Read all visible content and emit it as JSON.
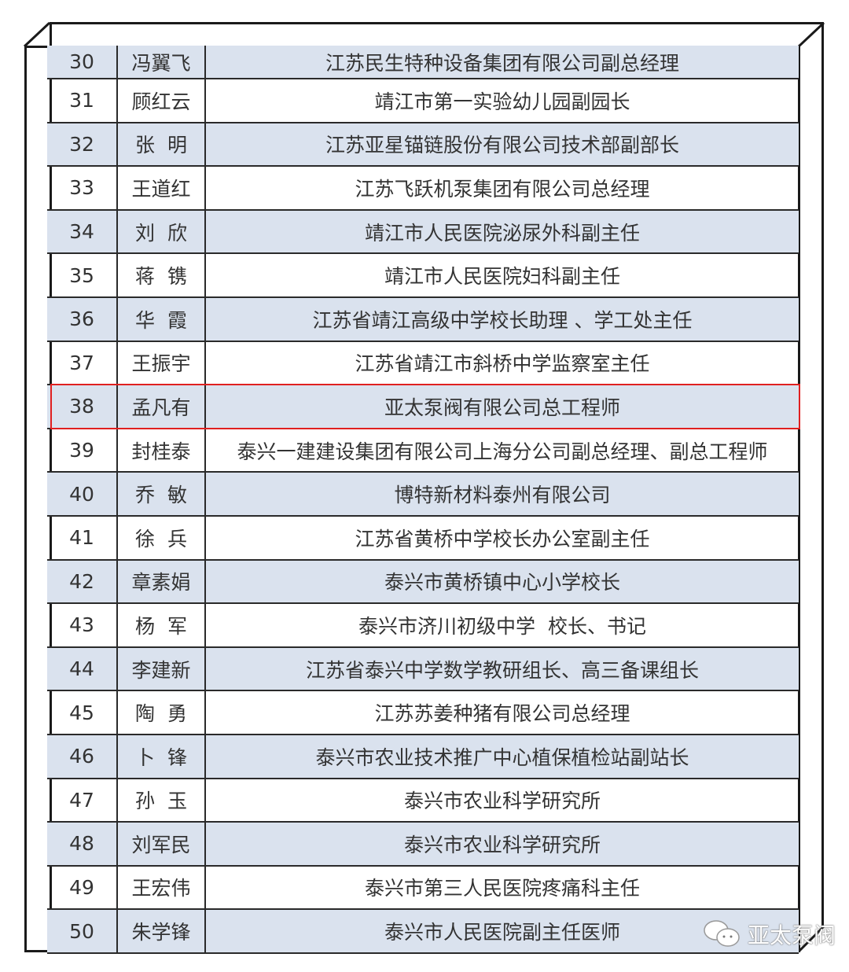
{
  "rows": [
    {
      "no": "30",
      "name": "冯翼飞",
      "unit": "江苏民生特种设备集团有限公司副总经理"
    },
    {
      "no": "31",
      "name": "顾红云",
      "unit": "靖江市第一实验幼儿园副园长"
    },
    {
      "no": "32",
      "name": "张  明",
      "unit": "江苏亚星锚链股份有限公司技术部副部长"
    },
    {
      "no": "33",
      "name": "王道红",
      "unit": "江苏飞跃机泵集团有限公司总经理"
    },
    {
      "no": "34",
      "name": "刘  欣",
      "unit": "靖江市人民医院泌尿外科副主任"
    },
    {
      "no": "35",
      "name": "蒋  镌",
      "unit": "靖江市人民医院妇科副主任"
    },
    {
      "no": "36",
      "name": "华  霞",
      "unit": "江苏省靖江高级中学校长助理 、学工处主任"
    },
    {
      "no": "37",
      "name": "王振宇",
      "unit": "江苏省靖江市斜桥中学监察室主任"
    },
    {
      "no": "38",
      "name": "孟凡有",
      "unit": "亚太泵阀有限公司总工程师"
    },
    {
      "no": "39",
      "name": "封桂泰",
      "unit": "泰兴一建建设集团有限公司上海分公司副总经理、副总工程师"
    },
    {
      "no": "40",
      "name": "乔  敏",
      "unit": "博特新材料泰州有限公司"
    },
    {
      "no": "41",
      "name": "徐  兵",
      "unit": "江苏省黄桥中学校长办公室副主任"
    },
    {
      "no": "42",
      "name": "章素娟",
      "unit": "泰兴市黄桥镇中心小学校长"
    },
    {
      "no": "43",
      "name": "杨  军",
      "unit": "泰兴市济川初级中学  校长、书记"
    },
    {
      "no": "44",
      "name": "李建新",
      "unit": "江苏省泰兴中学数学教研组长、高三备课组长"
    },
    {
      "no": "45",
      "name": "陶  勇",
      "unit": "江苏苏姜种猪有限公司总经理"
    },
    {
      "no": "46",
      "name": "卜  锋",
      "unit": "泰兴市农业技术推广中心植保植检站副站长"
    },
    {
      "no": "47",
      "name": "孙  玉",
      "unit": "泰兴市农业科学研究所"
    },
    {
      "no": "48",
      "name": "刘军民",
      "unit": "泰兴市农业科学研究所"
    },
    {
      "no": "49",
      "name": "王宏伟",
      "unit": "泰兴市第三人民医院疼痛科主任"
    },
    {
      "no": "50",
      "name": "朱学锋",
      "unit": "泰兴市人民医院副主任医师"
    }
  ],
  "highlighted_no": "38",
  "watermark": {
    "text": "亚太泵阀",
    "icon": "wechat-icon"
  },
  "colors": {
    "row_alt": "#dae2ee",
    "highlight_border": "#e02020"
  }
}
